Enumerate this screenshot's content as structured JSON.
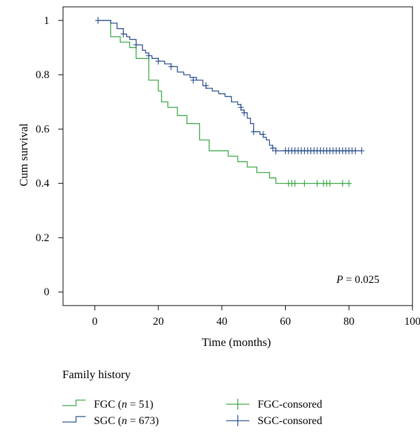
{
  "chart_data": {
    "type": "line",
    "title": "",
    "xlabel": "Time (months)",
    "ylabel": "Cum survival",
    "xlim": [
      -10,
      100
    ],
    "ylim": [
      -0.05,
      1.05
    ],
    "xticks": [
      0,
      20,
      40,
      60,
      80,
      100
    ],
    "yticks": [
      0,
      0.2,
      0.4,
      0.6,
      0.8,
      1
    ],
    "ytick_labels": [
      "0",
      "0.2",
      "0.4",
      "0.6",
      "0.8",
      "1"
    ],
    "annotation": {
      "prefix": "P",
      "text": " = 0.025"
    },
    "legend_title": "Family history",
    "legend": [
      {
        "label": "FGC (",
        "n": "n",
        "rest": " = 51)",
        "kind": "step",
        "color": "#3aa845"
      },
      {
        "label": "SGC (",
        "n": "n",
        "rest": " = 673)",
        "kind": "step",
        "color": "#2b4f8f"
      },
      {
        "label": "FGC-consored",
        "kind": "censor",
        "color": "#3aa845"
      },
      {
        "label": "SGC-consored",
        "kind": "censor",
        "color": "#2b4f8f"
      }
    ],
    "series": [
      {
        "name": "FGC",
        "color": "#3aa845",
        "steps": [
          [
            1,
            1.0
          ],
          [
            5,
            0.94
          ],
          [
            8,
            0.92
          ],
          [
            11,
            0.9
          ],
          [
            13,
            0.86
          ],
          [
            17,
            0.78
          ],
          [
            20,
            0.74
          ],
          [
            21,
            0.7
          ],
          [
            23,
            0.68
          ],
          [
            26,
            0.65
          ],
          [
            29,
            0.62
          ],
          [
            33,
            0.56
          ],
          [
            36,
            0.52
          ],
          [
            42,
            0.5
          ],
          [
            45,
            0.48
          ],
          [
            48,
            0.46
          ],
          [
            51,
            0.44
          ],
          [
            55,
            0.42
          ],
          [
            57,
            0.4
          ],
          [
            80,
            0.4
          ]
        ],
        "censored": [
          [
            61,
            0.4
          ],
          [
            62,
            0.4
          ],
          [
            63,
            0.4
          ],
          [
            66,
            0.4
          ],
          [
            70,
            0.4
          ],
          [
            72,
            0.4
          ],
          [
            73,
            0.4
          ],
          [
            74,
            0.4
          ],
          [
            78,
            0.4
          ],
          [
            80,
            0.4
          ]
        ]
      },
      {
        "name": "SGC",
        "color": "#2b4f8f",
        "steps": [
          [
            1,
            1.0
          ],
          [
            5,
            0.99
          ],
          [
            7,
            0.97
          ],
          [
            9,
            0.95
          ],
          [
            10,
            0.94
          ],
          [
            11,
            0.93
          ],
          [
            13,
            0.91
          ],
          [
            15,
            0.89
          ],
          [
            16,
            0.88
          ],
          [
            17,
            0.87
          ],
          [
            18,
            0.86
          ],
          [
            20,
            0.85
          ],
          [
            22,
            0.84
          ],
          [
            24,
            0.83
          ],
          [
            26,
            0.81
          ],
          [
            28,
            0.8
          ],
          [
            30,
            0.79
          ],
          [
            32,
            0.78
          ],
          [
            34,
            0.76
          ],
          [
            35,
            0.75
          ],
          [
            37,
            0.74
          ],
          [
            39,
            0.73
          ],
          [
            41,
            0.72
          ],
          [
            43,
            0.7
          ],
          [
            45,
            0.69
          ],
          [
            46,
            0.67
          ],
          [
            47,
            0.66
          ],
          [
            48,
            0.64
          ],
          [
            49,
            0.62
          ],
          [
            50,
            0.59
          ],
          [
            52,
            0.58
          ],
          [
            53,
            0.57
          ],
          [
            54,
            0.56
          ],
          [
            55,
            0.54
          ],
          [
            56,
            0.53
          ],
          [
            57,
            0.52
          ],
          [
            84,
            0.52
          ]
        ],
        "censored": [
          [
            1,
            1.0
          ],
          [
            9,
            0.95
          ],
          [
            13,
            0.91
          ],
          [
            17,
            0.87
          ],
          [
            20,
            0.85
          ],
          [
            24,
            0.83
          ],
          [
            31,
            0.78
          ],
          [
            35,
            0.76
          ],
          [
            46,
            0.68
          ],
          [
            47,
            0.66
          ],
          [
            50,
            0.59
          ],
          [
            53,
            0.58
          ],
          [
            56,
            0.53
          ],
          [
            57,
            0.52
          ],
          [
            60,
            0.52
          ],
          [
            61,
            0.52
          ],
          [
            62,
            0.52
          ],
          [
            63,
            0.52
          ],
          [
            64,
            0.52
          ],
          [
            65,
            0.52
          ],
          [
            66,
            0.52
          ],
          [
            67,
            0.52
          ],
          [
            68,
            0.52
          ],
          [
            69,
            0.52
          ],
          [
            70,
            0.52
          ],
          [
            71,
            0.52
          ],
          [
            72,
            0.52
          ],
          [
            73,
            0.52
          ],
          [
            74,
            0.52
          ],
          [
            75,
            0.52
          ],
          [
            76,
            0.52
          ],
          [
            77,
            0.52
          ],
          [
            78,
            0.52
          ],
          [
            79,
            0.52
          ],
          [
            80,
            0.52
          ],
          [
            81,
            0.52
          ],
          [
            82,
            0.52
          ],
          [
            84,
            0.52
          ]
        ]
      }
    ]
  }
}
